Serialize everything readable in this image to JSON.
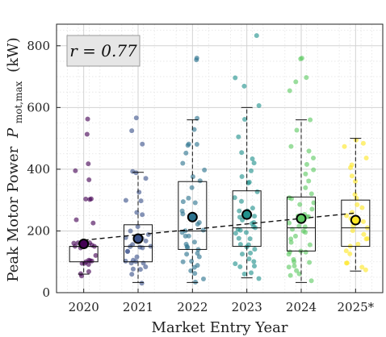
{
  "chart_data": {
    "type": "box",
    "categories": [
      "2020",
      "2021",
      "2022",
      "2023",
      "2024",
      "2025*"
    ],
    "xlabel": "Market Entry Year",
    "ylabel": "Peak Motor Power",
    "ylabel_symbol": "P",
    "ylabel_subscript": "mot,max",
    "ylabel_unit": "(kW)",
    "ylim": [
      0,
      870
    ],
    "yticks": [
      0,
      200,
      400,
      600,
      800
    ],
    "grid": true,
    "annotation": "r = 0.77",
    "colors": [
      "#440154",
      "#3b528b",
      "#2c728e",
      "#21918c",
      "#5ec962",
      "#fde725"
    ],
    "boxes": [
      {
        "year": "2020",
        "q1": 100,
        "median": 150,
        "q3": 150,
        "whisker_low": 60,
        "whisker_high": 160,
        "mean": 158
      },
      {
        "year": "2021",
        "q1": 100,
        "median": 150,
        "q3": 220,
        "whisker_low": 33,
        "whisker_high": 390,
        "mean": 175
      },
      {
        "year": "2022",
        "q1": 140,
        "median": 200,
        "q3": 360,
        "whisker_low": 33,
        "whisker_high": 560,
        "mean": 245
      },
      {
        "year": "2023",
        "q1": 150,
        "median": 210,
        "q3": 330,
        "whisker_low": 48,
        "whisker_high": 600,
        "mean": 253
      },
      {
        "year": "2024",
        "q1": 135,
        "median": 210,
        "q3": 310,
        "whisker_low": 33,
        "whisker_high": 560,
        "mean": 240
      },
      {
        "year": "2025*",
        "q1": 150,
        "median": 210,
        "q3": 300,
        "whisker_low": 70,
        "whisker_high": 500,
        "mean": 235
      }
    ],
    "trend_line": {
      "start": 170,
      "end": 258
    },
    "points": [
      [
        560,
        520,
        420,
        400,
        370,
        300,
        300,
        300,
        240,
        230,
        160,
        160,
        160,
        155,
        150,
        150,
        148,
        145,
        120,
        100,
        100,
        100,
        100,
        100,
        95,
        90,
        65,
        60,
        60
      ],
      [
        560,
        520,
        475,
        390,
        385,
        370,
        330,
        300,
        300,
        260,
        250,
        220,
        200,
        190,
        180,
        175,
        170,
        160,
        150,
        150,
        150,
        150,
        140,
        130,
        120,
        110,
        100,
        100,
        100,
        100,
        90,
        80,
        70,
        60,
        33
      ],
      [
        760,
        760,
        560,
        525,
        480,
        480,
        480,
        450,
        420,
        400,
        380,
        360,
        340,
        300,
        300,
        290,
        260,
        250,
        230,
        220,
        200,
        200,
        200,
        190,
        180,
        170,
        160,
        150,
        150,
        140,
        130,
        120,
        110,
        100,
        100,
        90,
        80,
        70,
        60,
        50,
        33
      ],
      [
        830,
        695,
        675,
        600,
        560,
        510,
        460,
        440,
        420,
        400,
        380,
        360,
        350,
        330,
        310,
        300,
        280,
        270,
        260,
        250,
        245,
        240,
        230,
        220,
        215,
        210,
        200,
        200,
        195,
        190,
        180,
        170,
        160,
        150,
        150,
        140,
        130,
        120,
        110,
        100,
        100,
        90,
        80,
        70,
        60,
        48
      ],
      [
        760,
        760,
        700,
        680,
        650,
        560,
        520,
        480,
        460,
        440,
        420,
        400,
        380,
        360,
        340,
        320,
        310,
        300,
        290,
        280,
        270,
        260,
        250,
        245,
        240,
        230,
        220,
        210,
        200,
        200,
        190,
        180,
        170,
        160,
        150,
        140,
        135,
        130,
        120,
        110,
        100,
        100,
        90,
        80,
        70,
        60,
        50,
        33
      ],
      [
        500,
        480,
        470,
        440,
        420,
        400,
        380,
        360,
        320,
        300,
        290,
        280,
        260,
        250,
        240,
        230,
        220,
        210,
        200,
        190,
        180,
        170,
        160,
        150,
        140,
        120,
        100,
        90,
        80,
        70
      ]
    ]
  }
}
